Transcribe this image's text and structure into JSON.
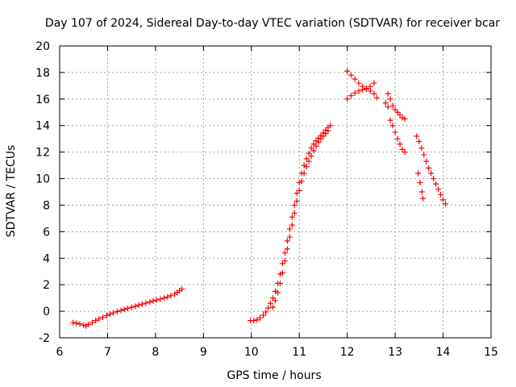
{
  "chart_data": {
    "type": "scatter",
    "title": "Day 107 of 2024, Sidereal Day-to-day VTEC variation (SDTVAR) for receiver bcar",
    "xlabel": "GPS time / hours",
    "ylabel": "SDTVAR / TECUs",
    "xlim": [
      6,
      15
    ],
    "ylim": [
      -2,
      20
    ],
    "xticks": [
      "6",
      "7",
      "8",
      "9",
      "10",
      "11",
      "12",
      "13",
      "14",
      "15"
    ],
    "yticks": [
      "-2",
      "0",
      "2",
      "4",
      "6",
      "8",
      "10",
      "12",
      "14",
      "16",
      "18",
      "20"
    ],
    "grid": true,
    "marker": "+",
    "series_color": "#ff0000",
    "series": [
      {
        "name": "segment-1",
        "points": [
          [
            6.28,
            -0.85
          ],
          [
            6.35,
            -0.9
          ],
          [
            6.42,
            -0.95
          ],
          [
            6.5,
            -1.05
          ],
          [
            6.55,
            -1.1
          ],
          [
            6.6,
            -1.0
          ],
          [
            6.68,
            -0.85
          ],
          [
            6.75,
            -0.7
          ],
          [
            6.82,
            -0.58
          ],
          [
            6.9,
            -0.45
          ],
          [
            6.98,
            -0.32
          ],
          [
            7.05,
            -0.22
          ],
          [
            7.12,
            -0.12
          ],
          [
            7.2,
            -0.02
          ],
          [
            7.28,
            0.06
          ],
          [
            7.35,
            0.14
          ],
          [
            7.42,
            0.22
          ],
          [
            7.5,
            0.3
          ],
          [
            7.58,
            0.38
          ],
          [
            7.65,
            0.46
          ],
          [
            7.72,
            0.54
          ],
          [
            7.8,
            0.62
          ],
          [
            7.88,
            0.7
          ],
          [
            7.95,
            0.78
          ],
          [
            8.02,
            0.85
          ],
          [
            8.1,
            0.92
          ],
          [
            8.18,
            1.0
          ],
          [
            8.25,
            1.08
          ],
          [
            8.32,
            1.18
          ],
          [
            8.4,
            1.3
          ],
          [
            8.45,
            1.42
          ],
          [
            8.5,
            1.55
          ],
          [
            8.55,
            1.68
          ]
        ]
      },
      {
        "name": "segment-2-rise-lower",
        "points": [
          [
            9.98,
            -0.7
          ],
          [
            10.05,
            -0.7
          ],
          [
            10.12,
            -0.65
          ],
          [
            10.18,
            -0.5
          ],
          [
            10.25,
            -0.3
          ],
          [
            10.3,
            -0.05
          ],
          [
            10.35,
            0.25
          ],
          [
            10.4,
            0.6
          ],
          [
            10.45,
            1.0
          ],
          [
            10.5,
            1.5
          ],
          [
            10.55,
            2.1
          ],
          [
            10.6,
            2.8
          ],
          [
            10.65,
            3.6
          ],
          [
            10.7,
            4.4
          ],
          [
            10.75,
            5.3
          ],
          [
            10.8,
            6.2
          ],
          [
            10.85,
            7.1
          ],
          [
            10.9,
            8.0
          ],
          [
            10.95,
            8.9
          ],
          [
            11.0,
            9.7
          ],
          [
            11.05,
            10.4
          ],
          [
            11.1,
            11.0
          ],
          [
            11.15,
            11.5
          ],
          [
            11.2,
            11.9
          ],
          [
            11.25,
            12.3
          ],
          [
            11.3,
            12.6
          ],
          [
            11.35,
            12.85
          ],
          [
            11.4,
            13.05
          ],
          [
            11.45,
            13.25
          ],
          [
            11.5,
            13.45
          ],
          [
            11.55,
            13.65
          ],
          [
            11.6,
            13.85
          ],
          [
            11.65,
            14.0
          ]
        ]
      },
      {
        "name": "segment-2-rise-upper",
        "points": [
          [
            10.45,
            0.3
          ],
          [
            10.5,
            0.8
          ],
          [
            10.55,
            1.4
          ],
          [
            10.6,
            2.1
          ],
          [
            10.65,
            2.9
          ],
          [
            10.7,
            3.8
          ],
          [
            10.75,
            4.7
          ],
          [
            10.8,
            5.6
          ],
          [
            10.85,
            6.5
          ],
          [
            10.9,
            7.4
          ],
          [
            10.95,
            8.3
          ],
          [
            11.0,
            9.1
          ],
          [
            11.05,
            9.8
          ],
          [
            11.1,
            10.4
          ],
          [
            11.15,
            10.9
          ],
          [
            11.2,
            11.3
          ],
          [
            11.25,
            11.7
          ],
          [
            11.3,
            12.1
          ],
          [
            11.35,
            12.45
          ],
          [
            11.4,
            12.75
          ],
          [
            11.45,
            13.0
          ],
          [
            11.5,
            13.2
          ],
          [
            11.55,
            13.4
          ],
          [
            11.6,
            13.6
          ]
        ]
      },
      {
        "name": "segment-3-crossing",
        "points": [
          [
            12.0,
            18.1
          ],
          [
            12.08,
            17.8
          ],
          [
            12.16,
            17.5
          ],
          [
            12.24,
            17.2
          ],
          [
            12.32,
            16.95
          ],
          [
            12.4,
            16.75
          ],
          [
            12.48,
            16.6
          ],
          [
            12.56,
            16.4
          ],
          [
            12.62,
            16.1
          ],
          [
            12.0,
            16.0
          ],
          [
            12.08,
            16.25
          ],
          [
            12.16,
            16.45
          ],
          [
            12.24,
            16.6
          ],
          [
            12.32,
            16.7
          ],
          [
            12.4,
            16.8
          ],
          [
            12.48,
            16.95
          ],
          [
            12.56,
            17.2
          ]
        ]
      },
      {
        "name": "segment-4",
        "points": [
          [
            12.8,
            15.7
          ],
          [
            12.85,
            16.4
          ],
          [
            12.9,
            16.0
          ],
          [
            12.95,
            15.5
          ],
          [
            13.0,
            15.2
          ],
          [
            13.05,
            15.0
          ],
          [
            13.1,
            14.8
          ],
          [
            13.15,
            14.6
          ],
          [
            13.2,
            14.5
          ],
          [
            12.85,
            15.4
          ],
          [
            12.9,
            14.4
          ],
          [
            12.95,
            14.0
          ],
          [
            13.0,
            13.5
          ],
          [
            13.05,
            13.0
          ],
          [
            13.1,
            12.6
          ],
          [
            13.15,
            12.2
          ],
          [
            13.2,
            12.0
          ]
        ]
      },
      {
        "name": "segment-5",
        "points": [
          [
            13.45,
            13.2
          ],
          [
            13.5,
            12.8
          ],
          [
            13.55,
            12.3
          ],
          [
            13.6,
            11.8
          ],
          [
            13.65,
            11.3
          ],
          [
            13.7,
            10.8
          ],
          [
            13.75,
            10.4
          ],
          [
            13.8,
            10.0
          ],
          [
            13.85,
            9.6
          ],
          [
            13.9,
            9.2
          ],
          [
            13.95,
            8.8
          ],
          [
            14.0,
            8.4
          ],
          [
            14.05,
            8.1
          ],
          [
            13.48,
            10.4
          ],
          [
            13.52,
            9.7
          ],
          [
            13.56,
            9.0
          ],
          [
            13.58,
            8.5
          ]
        ]
      }
    ]
  }
}
